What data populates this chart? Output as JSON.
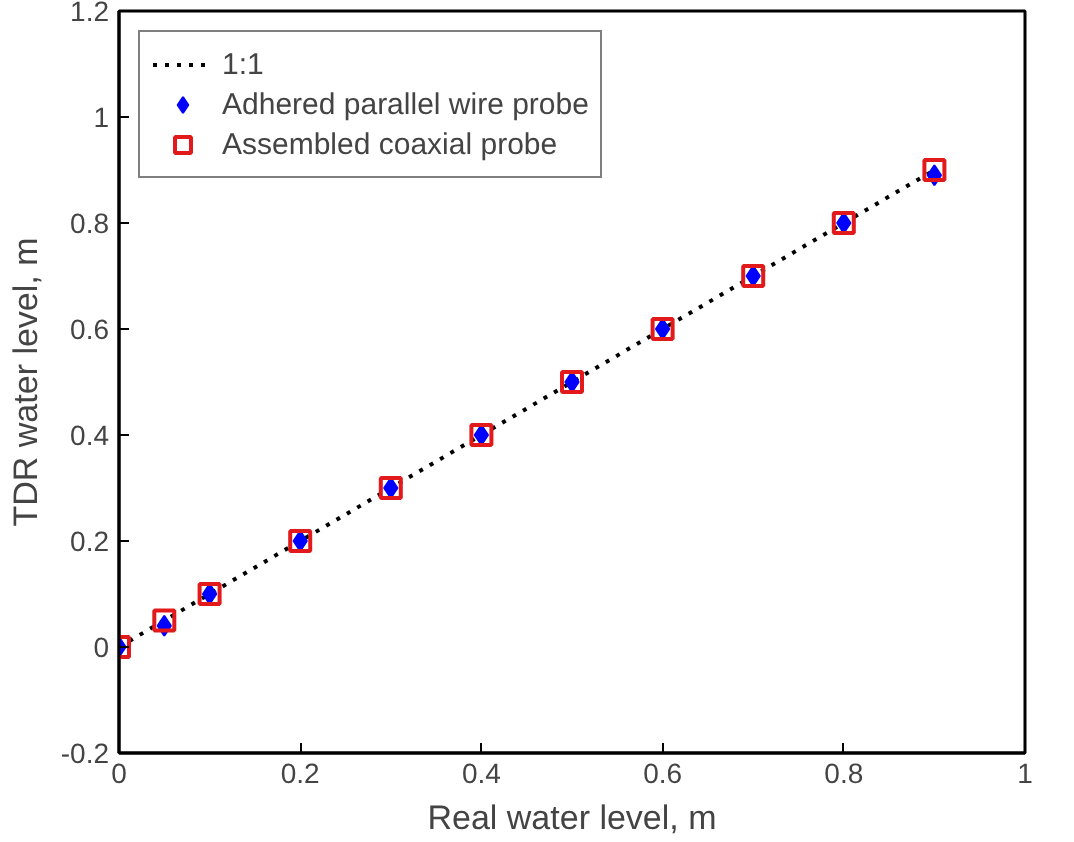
{
  "chart_data": {
    "type": "scatter",
    "xlabel": "Real water level, m",
    "ylabel": "TDR water level, m",
    "xlim": [
      0,
      1
    ],
    "ylim": [
      -0.2,
      1.2
    ],
    "xticks": [
      0,
      0.2,
      0.4,
      0.6,
      0.8,
      1
    ],
    "yticks": [
      -0.2,
      0,
      0.2,
      0.4,
      0.6,
      0.8,
      1,
      1.2
    ],
    "grid": false,
    "legend": "top left",
    "x": [
      0,
      0.05,
      0.1,
      0.2,
      0.3,
      0.4,
      0.5,
      0.6,
      0.7,
      0.8,
      0.9
    ],
    "series": [
      {
        "name": "1:1",
        "type": "line",
        "line_style": "dotted",
        "marker": "none",
        "color": "#000000",
        "x": [
          0,
          0.9
        ],
        "values": [
          0,
          0.9
        ]
      },
      {
        "name": "Adhered parallel wire probe",
        "marker": "diamond",
        "color": "#0000ff",
        "values": [
          0,
          0.04,
          0.1,
          0.2,
          0.3,
          0.4,
          0.5,
          0.6,
          0.7,
          0.8,
          0.89
        ]
      },
      {
        "name": "Assembled coaxial probe",
        "marker": "square",
        "color": "#e31a1c",
        "values": [
          0,
          0.05,
          0.1,
          0.2,
          0.3,
          0.4,
          0.5,
          0.6,
          0.7,
          0.8,
          0.9
        ]
      }
    ]
  }
}
